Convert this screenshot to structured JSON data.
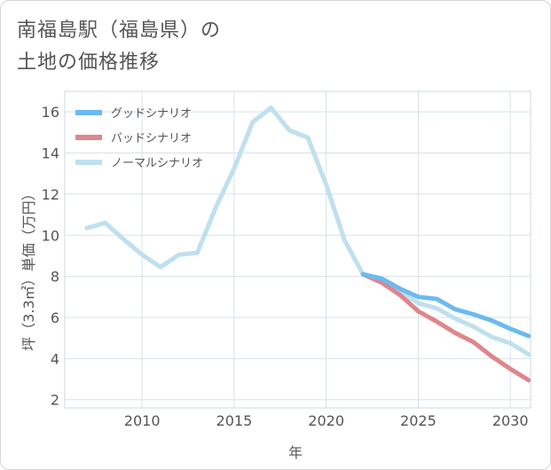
{
  "title_lines": [
    "南福島駅（福島県）の",
    "土地の価格推移"
  ],
  "chart_data": {
    "type": "line",
    "title": "南福島駅（福島県）の土地の価格推移",
    "xlabel": "年",
    "ylabel": "坪（3.3㎡）単価（万円）",
    "xlim": [
      2005.8,
      2031.1
    ],
    "ylim": [
      1.6,
      17
    ],
    "xticks": [
      2010,
      2015,
      2020,
      2025,
      2030
    ],
    "yticks": [
      2,
      4,
      6,
      8,
      10,
      12,
      14,
      16
    ],
    "grid": true,
    "legend_position": "top-left",
    "series": [
      {
        "name": "グッドシナリオ",
        "color": "#6bbaf0",
        "x": [
          2022,
          2023,
          2024,
          2025,
          2026,
          2027,
          2028,
          2029,
          2030,
          2031
        ],
        "values": [
          8.1,
          7.9,
          7.4,
          7.0,
          6.9,
          6.4,
          6.15,
          5.85,
          5.45,
          5.1
        ]
      },
      {
        "name": "バッドシナリオ",
        "color": "#e0858d",
        "x": [
          2022,
          2023,
          2024,
          2025,
          2026,
          2027,
          2028,
          2029,
          2030,
          2031
        ],
        "values": [
          8.1,
          7.7,
          7.1,
          6.3,
          5.8,
          5.25,
          4.8,
          4.1,
          3.5,
          2.95
        ]
      },
      {
        "name": "ノーマルシナリオ",
        "color": "#bfe0ee",
        "x": [
          2007,
          2008,
          2009,
          2010,
          2011,
          2012,
          2013,
          2014,
          2015,
          2016,
          2017,
          2018,
          2019,
          2020,
          2021,
          2022,
          2023,
          2024,
          2025,
          2026,
          2027,
          2028,
          2029,
          2030,
          2031
        ],
        "values": [
          10.35,
          10.6,
          9.8,
          9.05,
          8.45,
          9.05,
          9.15,
          11.35,
          13.25,
          15.5,
          16.2,
          15.1,
          14.75,
          12.45,
          9.75,
          8.1,
          7.75,
          7.25,
          6.7,
          6.45,
          5.95,
          5.55,
          5.05,
          4.75,
          4.2
        ]
      }
    ]
  }
}
